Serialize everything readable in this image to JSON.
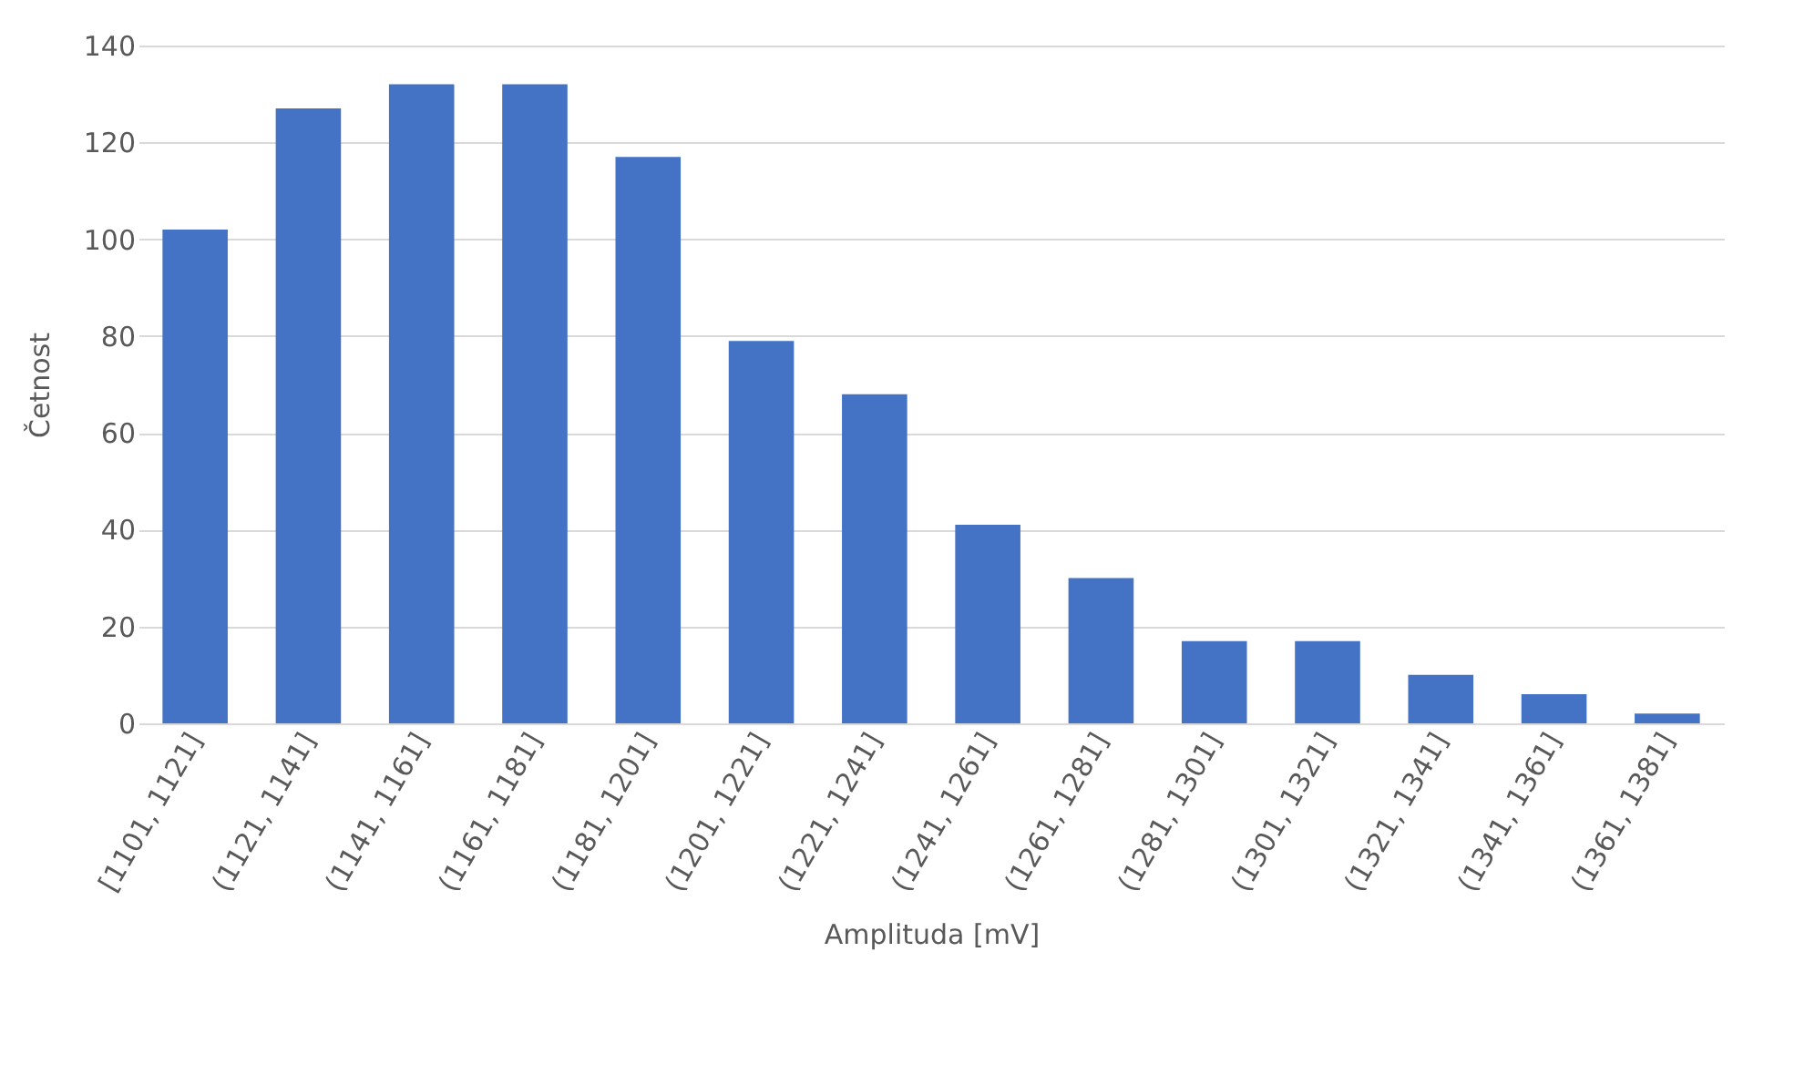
{
  "chart_data": {
    "type": "bar",
    "xlabel": "Amplituda [mV]",
    "ylabel": "Četnost",
    "categories": [
      "[1101, 1121]",
      "(1121, 1141]",
      "(1141, 1161]",
      "(1161, 1181]",
      "(1181, 1201]",
      "(1201, 1221]",
      "(1221, 1241]",
      "(1241, 1261]",
      "(1261, 1281]",
      "(1281, 1301]",
      "(1301, 1321]",
      "(1321, 1341]",
      "(1341, 1361]",
      "(1361, 1381]"
    ],
    "values": [
      102,
      127,
      132,
      132,
      117,
      79,
      68,
      41,
      30,
      17,
      17,
      10,
      6,
      2
    ],
    "color": "#4472c4",
    "ylim": [
      0,
      140
    ],
    "yticks": [
      0,
      20,
      40,
      60,
      80,
      100,
      120,
      140
    ],
    "grid": "y"
  }
}
